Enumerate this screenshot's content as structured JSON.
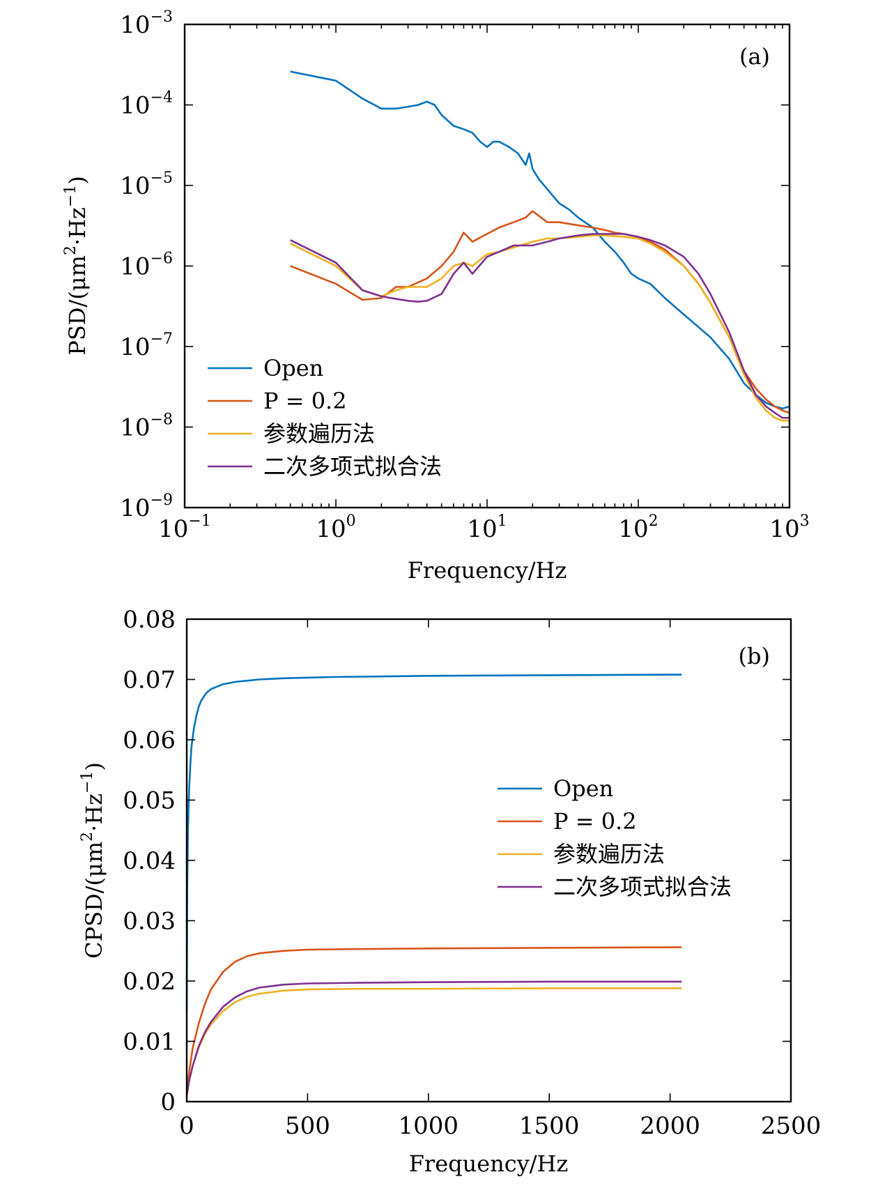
{
  "chart_data": [
    {
      "type": "line",
      "panel_tag": "(a)",
      "xscale": "log",
      "yscale": "log",
      "xlabel": "Frequency/Hz",
      "ylabel": "PSD/(μm²·Hz⁻¹)",
      "ylabel_parts": {
        "pre": "PSD/(μm",
        "sup1": "2",
        "mid": "·Hz",
        "sup2": "−1",
        "post": ")"
      },
      "xlim": [
        0.1,
        1000
      ],
      "ylim": [
        1e-09,
        0.001
      ],
      "xticks": [
        {
          "base": "10",
          "exp": "−1"
        },
        {
          "base": "10",
          "exp": "0"
        },
        {
          "base": "10",
          "exp": "1"
        },
        {
          "base": "10",
          "exp": "2"
        },
        {
          "base": "10",
          "exp": "3"
        }
      ],
      "yticks": [
        {
          "base": "10",
          "exp": "−3"
        },
        {
          "base": "10",
          "exp": "−4"
        },
        {
          "base": "10",
          "exp": "−5"
        },
        {
          "base": "10",
          "exp": "−6"
        },
        {
          "base": "10",
          "exp": "−7"
        },
        {
          "base": "10",
          "exp": "−8"
        },
        {
          "base": "10",
          "exp": "−9"
        }
      ],
      "legend_position": "lower-left",
      "series": [
        {
          "name": "Open",
          "color": "#0072BD",
          "x": [
            0.5,
            1,
            1.5,
            2,
            2.5,
            3,
            3.5,
            4,
            4.5,
            5,
            6,
            7,
            8,
            9,
            10,
            11,
            12,
            14,
            16,
            18,
            19,
            20,
            22,
            25,
            30,
            35,
            40,
            50,
            60,
            70,
            80,
            90,
            100,
            120,
            150,
            200,
            300,
            400,
            500,
            600,
            700,
            800,
            900,
            1000
          ],
          "y": [
            0.00026,
            0.0002,
            0.00012,
            9e-05,
            9e-05,
            9.5e-05,
            0.0001,
            0.00011,
            0.0001,
            7.5e-05,
            5.5e-05,
            5e-05,
            4.5e-05,
            3.5e-05,
            3e-05,
            3.5e-05,
            3.5e-05,
            3e-05,
            2.5e-05,
            1.8e-05,
            2.5e-05,
            1.6e-05,
            1.2e-05,
            9e-06,
            6e-06,
            5e-06,
            4e-06,
            3e-06,
            2e-06,
            1.5e-06,
            1.1e-06,
            8e-07,
            7e-07,
            6e-07,
            4e-07,
            2.5e-07,
            1.3e-07,
            7e-08,
            3.5e-08,
            2.5e-08,
            2e-08,
            1.8e-08,
            1.7e-08,
            1.8e-08
          ]
        },
        {
          "name": "P = 0.2",
          "color": "#D95319",
          "x": [
            0.5,
            1,
            1.5,
            2,
            2.5,
            3,
            4,
            5,
            6,
            7,
            8,
            10,
            12,
            15,
            18,
            20,
            25,
            30,
            40,
            50,
            60,
            70,
            80,
            100,
            120,
            150,
            200,
            250,
            300,
            400,
            500,
            600,
            700,
            800,
            900,
            1000
          ],
          "y": [
            1e-06,
            6e-07,
            3.8e-07,
            4e-07,
            5.5e-07,
            5.5e-07,
            7e-07,
            1e-06,
            1.5e-06,
            2.6e-06,
            2e-06,
            2.5e-06,
            3e-06,
            3.5e-06,
            4e-06,
            4.8e-06,
            3.5e-06,
            3.5e-06,
            3.2e-06,
            3e-06,
            2.8e-06,
            2.6e-06,
            2.5e-06,
            2.3e-06,
            2e-06,
            1.6e-06,
            1e-06,
            6e-07,
            3.5e-07,
            1.3e-07,
            5e-08,
            3e-08,
            2.2e-08,
            1.8e-08,
            1.6e-08,
            1.5e-08
          ]
        },
        {
          "name": "参数遍历法",
          "color": "#EDB120",
          "x": [
            0.5,
            1,
            1.5,
            2,
            2.5,
            3,
            4,
            5,
            6,
            7,
            8,
            10,
            12,
            15,
            20,
            25,
            30,
            40,
            50,
            60,
            80,
            100,
            120,
            150,
            200,
            250,
            300,
            400,
            500,
            600,
            700,
            800,
            900,
            1000
          ],
          "y": [
            1.9e-06,
            1e-06,
            5e-07,
            4.2e-07,
            5e-07,
            5.5e-07,
            5.5e-07,
            7e-07,
            1e-06,
            1.1e-06,
            1e-06,
            1.4e-06,
            1.5e-06,
            1.7e-06,
            2e-06,
            2.2e-06,
            2.2e-06,
            2.3e-06,
            2.4e-06,
            2.4e-06,
            2.3e-06,
            2.2e-06,
            1.9e-06,
            1.5e-06,
            1e-06,
            6e-07,
            3.5e-07,
            1.3e-07,
            4.5e-08,
            2.3e-08,
            1.6e-08,
            1.3e-08,
            1.2e-08,
            1.2e-08
          ]
        },
        {
          "name": "二次多项式拟合法",
          "color": "#7E2F8E",
          "x": [
            0.5,
            1,
            1.5,
            2,
            2.5,
            3,
            3.5,
            4,
            5,
            6,
            7,
            8,
            10,
            12,
            15,
            20,
            25,
            30,
            40,
            50,
            60,
            80,
            100,
            120,
            150,
            200,
            250,
            300,
            400,
            500,
            600,
            700,
            800,
            900,
            1000
          ],
          "y": [
            2.1e-06,
            1.1e-06,
            5e-07,
            4.2e-07,
            3.9e-07,
            3.7e-07,
            3.6e-07,
            3.7e-07,
            4.5e-07,
            8e-07,
            1.1e-06,
            8e-07,
            1.3e-06,
            1.5e-06,
            1.8e-06,
            1.8e-06,
            2e-06,
            2.2e-06,
            2.4e-06,
            2.5e-06,
            2.5e-06,
            2.5e-06,
            2.3e-06,
            2.1e-06,
            1.8e-06,
            1.3e-06,
            8e-07,
            4.5e-07,
            1.5e-07,
            5e-08,
            2.5e-08,
            1.8e-08,
            1.5e-08,
            1.3e-08,
            1.3e-08
          ]
        }
      ]
    },
    {
      "type": "line",
      "panel_tag": "(b)",
      "xscale": "linear",
      "yscale": "linear",
      "xlabel": "Frequency/Hz",
      "ylabel": "CPSD/(μm²·Hz⁻¹)",
      "ylabel_parts": {
        "pre": "CPSD/(μm",
        "sup1": "2",
        "mid": "·Hz",
        "sup2": "−1",
        "post": ")"
      },
      "xlim": [
        0,
        2500
      ],
      "ylim": [
        0,
        0.08
      ],
      "xticks": [
        "0",
        "500",
        "1000",
        "1500",
        "2000",
        "2500"
      ],
      "xtick_values": [
        0,
        500,
        1000,
        1500,
        2000,
        2500
      ],
      "yticks": [
        "0",
        "0.01",
        "0.02",
        "0.03",
        "0.04",
        "0.05",
        "0.06",
        "0.07",
        "0.08"
      ],
      "ytick_values": [
        0,
        0.01,
        0.02,
        0.03,
        0.04,
        0.05,
        0.06,
        0.07,
        0.08
      ],
      "legend_position": "center-right",
      "series": [
        {
          "name": "Open",
          "color": "#0072BD",
          "x": [
            0,
            2,
            5,
            10,
            15,
            20,
            30,
            40,
            50,
            60,
            80,
            100,
            150,
            200,
            300,
            400,
            600,
            800,
            1000,
            1500,
            2048
          ],
          "y": [
            0.015,
            0.035,
            0.045,
            0.052,
            0.056,
            0.059,
            0.062,
            0.064,
            0.0655,
            0.0665,
            0.0677,
            0.0684,
            0.0692,
            0.0696,
            0.07,
            0.0702,
            0.0704,
            0.0705,
            0.0706,
            0.0707,
            0.0708
          ]
        },
        {
          "name": "P = 0.2",
          "color": "#D95319",
          "x": [
            0,
            10,
            25,
            50,
            75,
            100,
            150,
            200,
            250,
            300,
            400,
            500,
            700,
            1000,
            1500,
            2048
          ],
          "y": [
            0.001,
            0.005,
            0.009,
            0.013,
            0.0162,
            0.0186,
            0.0215,
            0.0232,
            0.0241,
            0.0246,
            0.025,
            0.0252,
            0.0253,
            0.0254,
            0.0255,
            0.0256
          ]
        },
        {
          "name": "参数遍历法",
          "color": "#EDB120",
          "x": [
            0,
            10,
            25,
            50,
            75,
            100,
            150,
            200,
            250,
            300,
            400,
            500,
            700,
            1000,
            1500,
            2048
          ],
          "y": [
            0.001,
            0.0035,
            0.006,
            0.009,
            0.0112,
            0.0128,
            0.015,
            0.0165,
            0.0174,
            0.0179,
            0.0184,
            0.0186,
            0.0187,
            0.0187,
            0.0188,
            0.0188
          ]
        },
        {
          "name": "二次多项式拟合法",
          "color": "#7E2F8E",
          "x": [
            0,
            10,
            25,
            50,
            75,
            100,
            150,
            200,
            250,
            300,
            400,
            500,
            700,
            1000,
            1500,
            2048
          ],
          "y": [
            0.001,
            0.0035,
            0.006,
            0.0092,
            0.0115,
            0.0132,
            0.0157,
            0.0173,
            0.0183,
            0.0189,
            0.0194,
            0.0196,
            0.0197,
            0.0198,
            0.0199,
            0.0199
          ]
        }
      ]
    }
  ]
}
